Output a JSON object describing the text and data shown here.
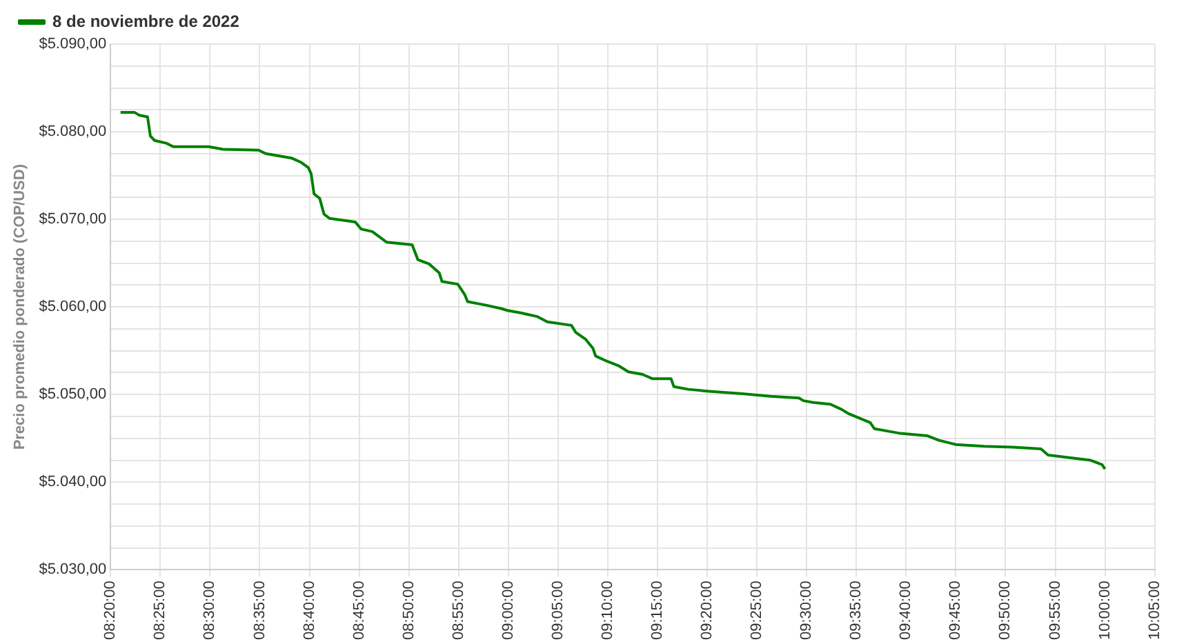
{
  "chart_data": {
    "type": "line",
    "ylabel": "Precio promedio ponderado (COP/USD)",
    "legend": "top left",
    "grid": true,
    "marker": "none",
    "line_style": "solid",
    "xlim": [
      8.3333,
      10.0833
    ],
    "xticks": [
      {
        "value": 8.3333,
        "label": "08:20:00"
      },
      {
        "value": 8.4167,
        "label": "08:25:00"
      },
      {
        "value": 8.5,
        "label": "08:30:00"
      },
      {
        "value": 8.5833,
        "label": "08:35:00"
      },
      {
        "value": 8.6667,
        "label": "08:40:00"
      },
      {
        "value": 8.75,
        "label": "08:45:00"
      },
      {
        "value": 8.8333,
        "label": "08:50:00"
      },
      {
        "value": 8.9167,
        "label": "08:55:00"
      },
      {
        "value": 9,
        "label": "09:00:00"
      },
      {
        "value": 9.0833,
        "label": "09:05:00"
      },
      {
        "value": 9.1667,
        "label": "09:10:00"
      },
      {
        "value": 9.25,
        "label": "09:15:00"
      },
      {
        "value": 9.3333,
        "label": "09:20:00"
      },
      {
        "value": 9.4167,
        "label": "09:25:00"
      },
      {
        "value": 9.5,
        "label": "09:30:00"
      },
      {
        "value": 9.5833,
        "label": "09:35:00"
      },
      {
        "value": 9.6667,
        "label": "09:40:00"
      },
      {
        "value": 9.75,
        "label": "09:45:00"
      },
      {
        "value": 9.8333,
        "label": "09:50:00"
      },
      {
        "value": 9.9167,
        "label": "09:55:00"
      },
      {
        "value": 10,
        "label": "10:00:00"
      },
      {
        "value": 10.0833,
        "label": "10:05:00"
      }
    ],
    "ylim": [
      5030,
      5090
    ],
    "yticks": [
      {
        "value": 5030,
        "label": "$5.030,00"
      },
      {
        "value": 5032.5,
        "label": null
      },
      {
        "value": 5035,
        "label": null
      },
      {
        "value": 5037.5,
        "label": null
      },
      {
        "value": 5040,
        "label": "$5.040,00"
      },
      {
        "value": 5042.5,
        "label": null
      },
      {
        "value": 5045,
        "label": null
      },
      {
        "value": 5047.5,
        "label": null
      },
      {
        "value": 5050,
        "label": "$5.050,00"
      },
      {
        "value": 5052.5,
        "label": null
      },
      {
        "value": 5055,
        "label": null
      },
      {
        "value": 5057.5,
        "label": null
      },
      {
        "value": 5060,
        "label": "$5.060,00"
      },
      {
        "value": 5062.5,
        "label": null
      },
      {
        "value": 5065,
        "label": null
      },
      {
        "value": 5067.5,
        "label": null
      },
      {
        "value": 5070,
        "label": "$5.070,00"
      },
      {
        "value": 5072.5,
        "label": null
      },
      {
        "value": 5075,
        "label": null
      },
      {
        "value": 5077.5,
        "label": null
      },
      {
        "value": 5080,
        "label": "$5.080,00"
      },
      {
        "value": 5082.5,
        "label": null
      },
      {
        "value": 5085,
        "label": null
      },
      {
        "value": 5087.5,
        "label": null
      },
      {
        "value": 5090,
        "label": "$5.090,00"
      }
    ],
    "series": [
      {
        "name": "8 de noviembre de 2022",
        "color": "#008000",
        "x": [
          8.35,
          8.3738,
          8.381,
          8.3953,
          8.4,
          8.4072,
          8.4263,
          8.4382,
          8.4978,
          8.5217,
          8.5813,
          8.5932,
          8.6362,
          8.6528,
          8.6648,
          8.6695,
          8.6743,
          8.6838,
          8.691,
          8.7005,
          8.7435,
          8.753,
          8.772,
          8.7958,
          8.8388,
          8.8483,
          8.8675,
          8.8842,
          8.8888,
          8.9152,
          8.927,
          8.9318,
          8.9628,
          8.989,
          8.9985,
          9.0223,
          9.0487,
          9.0653,
          9.1058,
          9.113,
          9.1297,
          9.1417,
          9.1463,
          9.1655,
          9.1845,
          9.2012,
          9.225,
          9.2418,
          9.2728,
          9.2775,
          9.3013,
          9.3323,
          9.392,
          9.4397,
          9.4873,
          9.4945,
          9.5112,
          9.5398,
          9.5588,
          9.5708,
          9.6065,
          9.6137,
          9.6543,
          9.702,
          9.721,
          9.7497,
          9.7973,
          9.845,
          9.8927,
          9.9047,
          9.9403,
          9.9762,
          9.9952,
          10.0
        ],
        "values": [
          5082.2,
          5082.2,
          5081.9,
          5081.7,
          5079.5,
          5079.0,
          5078.7,
          5078.3,
          5078.3,
          5078.0,
          5077.9,
          5077.5,
          5077.0,
          5076.5,
          5075.9,
          5075.2,
          5072.9,
          5072.4,
          5070.6,
          5070.1,
          5069.7,
          5068.9,
          5068.6,
          5067.4,
          5067.1,
          5065.4,
          5064.9,
          5063.9,
          5062.9,
          5062.6,
          5061.4,
          5060.6,
          5060.2,
          5059.8,
          5059.6,
          5059.3,
          5058.9,
          5058.3,
          5057.9,
          5057.1,
          5056.3,
          5055.3,
          5054.4,
          5053.8,
          5053.3,
          5052.6,
          5052.3,
          5051.8,
          5051.8,
          5050.9,
          5050.6,
          5050.4,
          5050.1,
          5049.8,
          5049.6,
          5049.3,
          5049.1,
          5048.9,
          5048.3,
          5047.8,
          5046.8,
          5046.1,
          5045.6,
          5045.3,
          5044.8,
          5044.3,
          5044.1,
          5044.0,
          5043.8,
          5043.1,
          5042.8,
          5042.5,
          5042.0,
          5041.5
        ]
      }
    ]
  }
}
